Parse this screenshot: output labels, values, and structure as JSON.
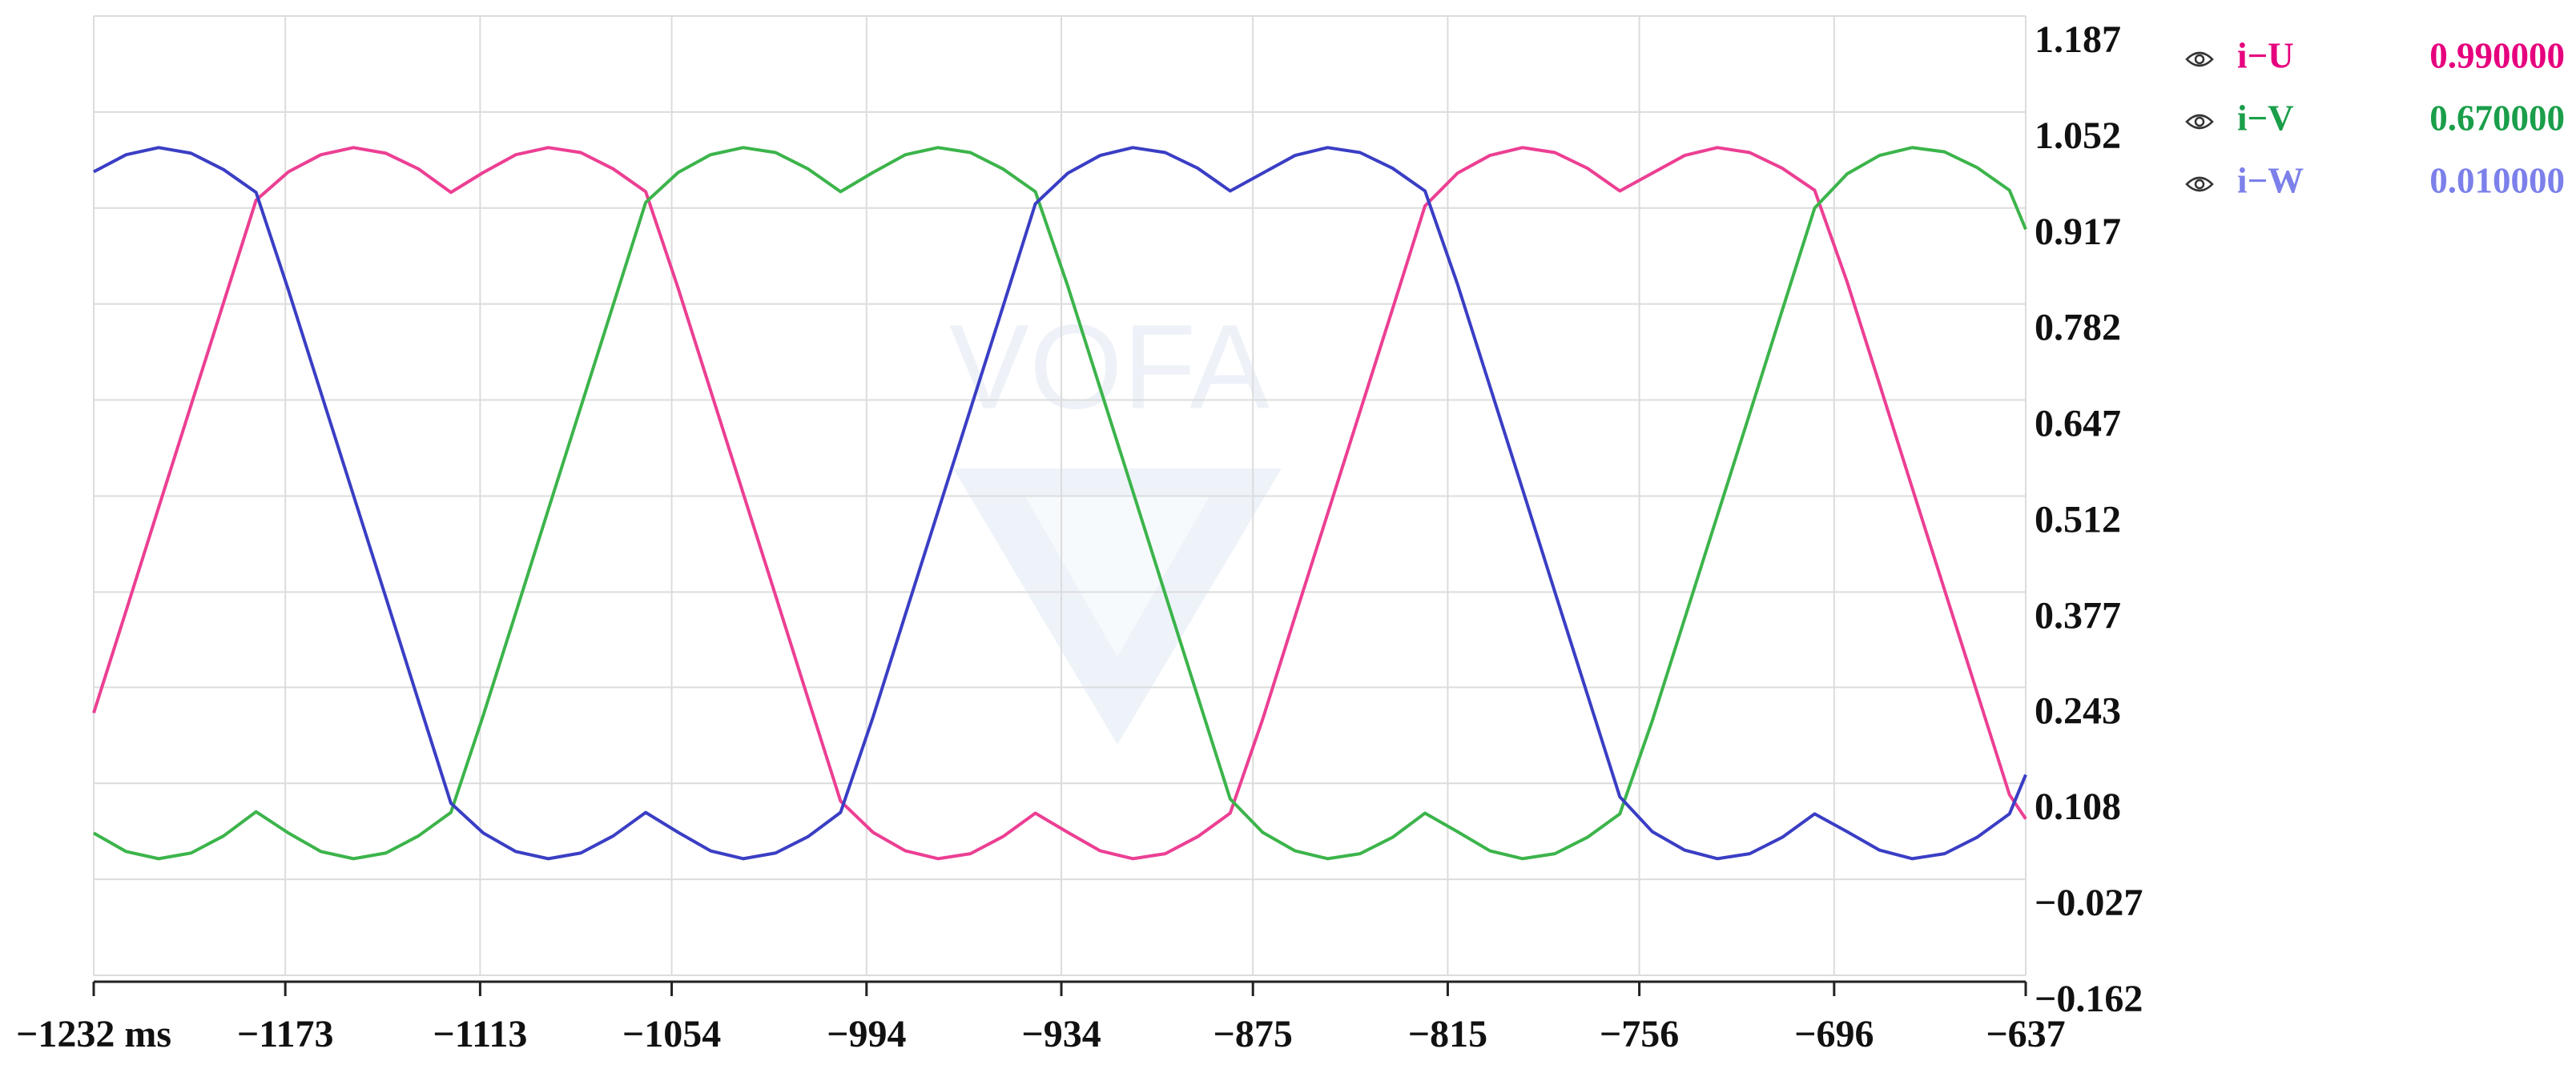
{
  "chart_data": {
    "type": "line",
    "watermark": "VOFA",
    "x": [
      -1232,
      -1222,
      -1212,
      -1202,
      -1192,
      -1182,
      -1172,
      -1162,
      -1152,
      -1142,
      -1132,
      -1122,
      -1112,
      -1102,
      -1092,
      -1082,
      -1072,
      -1062,
      -1052,
      -1042,
      -1032,
      -1022,
      -1012,
      -1002,
      -992,
      -982,
      -972,
      -962,
      -952,
      -942,
      -932,
      -922,
      -912,
      -902,
      -892,
      -882,
      -872,
      -862,
      -852,
      -842,
      -832,
      -822,
      -812,
      -802,
      -792,
      -782,
      -772,
      -762,
      -752,
      -742,
      -732,
      -722,
      -712,
      -702,
      -692,
      -682,
      -672,
      -662,
      -652,
      -642,
      -637
    ],
    "series": [
      {
        "name": "i−U",
        "color": "#ec3f93",
        "legend_color": "#e6007e",
        "legend_value": "0.990000",
        "values": [
          0.207,
          0.351,
          0.496,
          0.64,
          0.784,
          0.928,
          0.968,
          0.992,
          1.002,
          0.994,
          0.972,
          0.939,
          0.967,
          0.992,
          1.002,
          0.995,
          0.972,
          0.94,
          0.804,
          0.66,
          0.516,
          0.372,
          0.227,
          0.083,
          0.039,
          0.013,
          0.002,
          0.009,
          0.033,
          0.066,
          0.039,
          0.013,
          0.002,
          0.009,
          0.033,
          0.066,
          0.198,
          0.343,
          0.487,
          0.631,
          0.775,
          0.92,
          0.966,
          0.991,
          1.002,
          0.995,
          0.973,
          0.941,
          0.966,
          0.991,
          1.002,
          0.995,
          0.973,
          0.942,
          0.813,
          0.669,
          0.524,
          0.38,
          0.236,
          0.092,
          0.058
        ]
      },
      {
        "name": "i−V",
        "color": "#3cb44b",
        "legend_color": "#1a9e4a",
        "legend_value": "0.670000",
        "values": [
          0.038,
          0.012,
          0.002,
          0.01,
          0.034,
          0.068,
          0.038,
          0.012,
          0.002,
          0.01,
          0.034,
          0.067,
          0.204,
          0.348,
          0.493,
          0.637,
          0.781,
          0.925,
          0.967,
          0.992,
          1.002,
          0.995,
          0.972,
          0.94,
          0.967,
          0.992,
          1.002,
          0.995,
          0.972,
          0.94,
          0.807,
          0.663,
          0.519,
          0.374,
          0.23,
          0.086,
          0.039,
          0.013,
          0.002,
          0.009,
          0.032,
          0.066,
          0.04,
          0.013,
          0.002,
          0.009,
          0.032,
          0.065,
          0.196,
          0.34,
          0.484,
          0.628,
          0.773,
          0.917,
          0.965,
          0.991,
          1.002,
          0.996,
          0.974,
          0.942,
          0.887
        ]
      },
      {
        "name": "i−W",
        "color": "#3a3ec4",
        "legend_color": "#7b80ea",
        "legend_value": "0.010000",
        "values": [
          0.968,
          0.992,
          1.002,
          0.994,
          0.971,
          0.939,
          0.801,
          0.657,
          0.513,
          0.369,
          0.224,
          0.08,
          0.038,
          0.012,
          0.002,
          0.01,
          0.034,
          0.067,
          0.039,
          0.013,
          0.002,
          0.01,
          0.033,
          0.067,
          0.201,
          0.346,
          0.49,
          0.634,
          0.778,
          0.923,
          0.966,
          0.991,
          1.002,
          0.995,
          0.973,
          0.941,
          0.966,
          0.991,
          1.002,
          0.995,
          0.973,
          0.941,
          0.81,
          0.666,
          0.522,
          0.377,
          0.233,
          0.089,
          0.04,
          0.014,
          0.002,
          0.009,
          0.032,
          0.065,
          0.04,
          0.014,
          0.002,
          0.009,
          0.032,
          0.065,
          0.12
        ]
      }
    ],
    "xlim": [
      -1232,
      -637
    ],
    "xticks": [
      {
        "value": -1232,
        "label": "−1232 ms"
      },
      {
        "value": -1173,
        "label": "−1173"
      },
      {
        "value": -1113,
        "label": "−1113"
      },
      {
        "value": -1054,
        "label": "−1054"
      },
      {
        "value": -994,
        "label": "−994"
      },
      {
        "value": -934,
        "label": "−934"
      },
      {
        "value": -875,
        "label": "−875"
      },
      {
        "value": -815,
        "label": "−815"
      },
      {
        "value": -756,
        "label": "−756"
      },
      {
        "value": -696,
        "label": "−696"
      },
      {
        "value": -637,
        "label": "−637"
      }
    ],
    "ylim": [
      -0.162,
      1.187
    ],
    "yticks": [
      1.187,
      1.052,
      0.917,
      0.782,
      0.647,
      0.512,
      0.377,
      0.243,
      0.108,
      {
        "value": -0.027,
        "label": "−0.027"
      },
      {
        "value": -0.162,
        "label": "−0.162"
      }
    ],
    "grid": true
  }
}
